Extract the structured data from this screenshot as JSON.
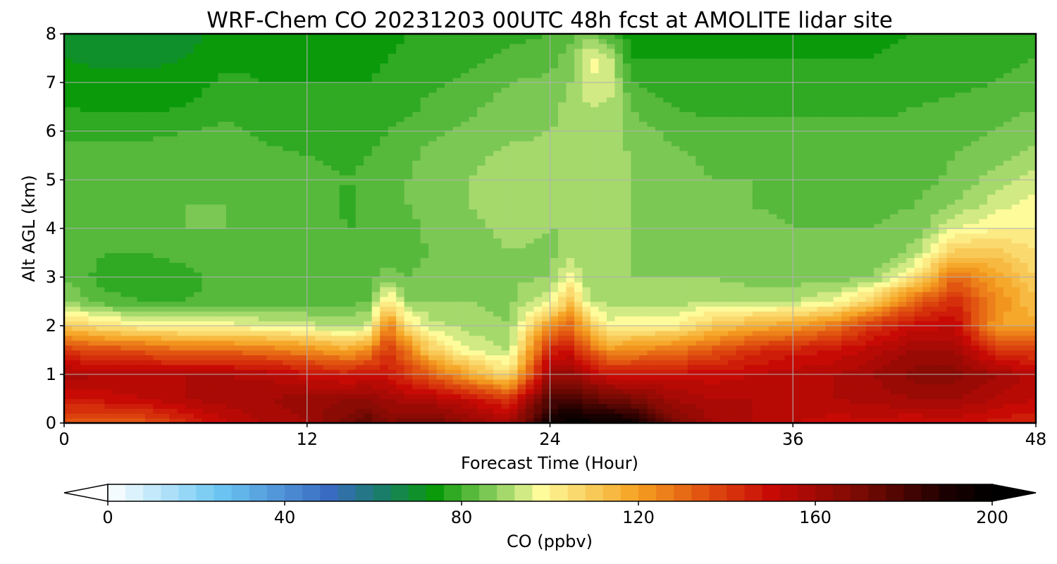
{
  "chart_data": {
    "type": "heatmap",
    "title": "WRF-Chem CO  20231203 00UTC 48h fcst at AMOLITE lidar site",
    "xlabel": "Forecast Time (Hour)",
    "ylabel": "Alt AGL (km)",
    "xlim": [
      0,
      48
    ],
    "ylim": [
      0,
      8
    ],
    "xticks": [
      "0",
      "12",
      "24",
      "36",
      "48"
    ],
    "yticks": [
      "0",
      "1",
      "2",
      "3",
      "4",
      "5",
      "6",
      "7",
      "8"
    ],
    "grid": true,
    "colorbar": {
      "label": "CO  (ppbv)",
      "min": 0,
      "max": 200,
      "ticks": [
        "0",
        "40",
        "80",
        "120",
        "160",
        "200"
      ],
      "extend": "both",
      "stops": [
        {
          "value": 0,
          "color": "#ffffff"
        },
        {
          "value": 25,
          "color": "#6cc7f2"
        },
        {
          "value": 50,
          "color": "#3a6bc2"
        },
        {
          "value": 62,
          "color": "#1a7d6a"
        },
        {
          "value": 74,
          "color": "#0a9a0a"
        },
        {
          "value": 88,
          "color": "#8fd060"
        },
        {
          "value": 98,
          "color": "#fdfb9a"
        },
        {
          "value": 120,
          "color": "#f5a020"
        },
        {
          "value": 135,
          "color": "#e05010"
        },
        {
          "value": 150,
          "color": "#c80a05"
        },
        {
          "value": 170,
          "color": "#7a0a04"
        },
        {
          "value": 190,
          "color": "#1a0000"
        },
        {
          "value": 200,
          "color": "#000000"
        }
      ]
    },
    "columns_time_h": [
      0,
      2,
      4,
      6,
      8,
      10,
      12,
      14,
      15,
      16,
      17,
      18,
      20,
      22,
      24,
      25,
      26,
      27,
      28,
      30,
      32,
      34,
      36,
      38,
      40,
      42,
      44,
      46,
      48
    ],
    "profile_heights_km": [
      0.0,
      0.5,
      1.0,
      1.5,
      2.0,
      2.5,
      3.0,
      3.5,
      4.0,
      4.5,
      5.0,
      5.5,
      6.0,
      6.5,
      7.0,
      7.5,
      8.0
    ],
    "profiles_ppbv": [
      [
        132,
        148,
        158,
        140,
        110,
        88,
        84,
        84,
        83,
        82,
        82,
        82,
        79,
        76,
        74,
        72,
        70
      ],
      [
        130,
        150,
        156,
        136,
        104,
        82,
        78,
        80,
        82,
        82,
        82,
        81,
        79,
        75,
        73,
        71,
        70
      ],
      [
        134,
        152,
        155,
        134,
        100,
        80,
        77,
        80,
        83,
        84,
        83,
        82,
        79,
        75,
        73,
        71,
        70
      ],
      [
        142,
        156,
        156,
        130,
        98,
        80,
        79,
        81,
        84,
        84,
        83,
        82,
        80,
        76,
        74,
        72,
        71
      ],
      [
        152,
        158,
        156,
        130,
        98,
        81,
        81,
        82,
        84,
        84,
        83,
        82,
        81,
        79,
        77,
        75,
        73
      ],
      [
        156,
        160,
        155,
        128,
        96,
        82,
        82,
        82,
        84,
        83,
        82,
        81,
        79,
        77,
        76,
        75,
        74
      ],
      [
        160,
        162,
        150,
        124,
        94,
        82,
        82,
        82,
        83,
        83,
        82,
        80,
        78,
        77,
        76,
        75,
        74
      ],
      [
        170,
        164,
        146,
        118,
        90,
        83,
        82,
        81,
        80,
        79,
        80,
        79,
        77,
        76,
        76,
        75,
        74
      ],
      [
        176,
        164,
        150,
        124,
        94,
        84,
        82,
        80,
        80,
        81,
        81,
        80,
        78,
        77,
        76,
        75,
        74
      ],
      [
        168,
        160,
        148,
        140,
        128,
        104,
        86,
        82,
        82,
        83,
        83,
        82,
        80,
        78,
        77,
        76,
        75
      ],
      [
        170,
        156,
        140,
        128,
        104,
        88,
        84,
        82,
        82,
        84,
        84,
        83,
        81,
        79,
        78,
        77,
        76
      ],
      [
        172,
        156,
        134,
        110,
        94,
        88,
        86,
        84,
        85,
        86,
        86,
        85,
        83,
        81,
        79,
        78,
        77
      ],
      [
        164,
        150,
        118,
        96,
        90,
        88,
        86,
        86,
        87,
        88,
        88,
        87,
        85,
        83,
        81,
        79,
        78
      ],
      [
        158,
        140,
        104,
        92,
        88,
        87,
        87,
        88,
        89,
        90,
        90,
        89,
        87,
        86,
        84,
        81,
        79
      ],
      [
        196,
        178,
        162,
        146,
        122,
        96,
        88,
        87,
        88,
        89,
        90,
        89,
        88,
        87,
        85,
        82,
        80
      ],
      [
        199,
        180,
        162,
        148,
        130,
        112,
        98,
        90,
        88,
        89,
        90,
        90,
        89,
        89,
        88,
        86,
        82
      ],
      [
        198,
        176,
        154,
        132,
        110,
        92,
        88,
        88,
        89,
        90,
        90,
        90,
        90,
        92,
        96,
        98,
        86
      ],
      [
        196,
        172,
        148,
        122,
        98,
        90,
        88,
        88,
        88,
        89,
        89,
        90,
        90,
        91,
        94,
        92,
        80
      ],
      [
        194,
        170,
        148,
        124,
        100,
        90,
        88,
        88,
        88,
        88,
        88,
        88,
        86,
        84,
        80,
        76,
        74
      ],
      [
        172,
        160,
        150,
        128,
        100,
        90,
        88,
        87,
        86,
        86,
        86,
        85,
        83,
        80,
        78,
        76,
        74
      ],
      [
        160,
        156,
        150,
        134,
        110,
        92,
        88,
        86,
        85,
        85,
        84,
        83,
        81,
        79,
        77,
        76,
        74
      ],
      [
        156,
        156,
        152,
        142,
        116,
        92,
        86,
        85,
        85,
        84,
        84,
        83,
        81,
        79,
        77,
        76,
        74
      ],
      [
        152,
        156,
        154,
        146,
        120,
        92,
        86,
        84,
        84,
        83,
        83,
        82,
        81,
        79,
        77,
        76,
        74
      ],
      [
        150,
        156,
        156,
        148,
        128,
        96,
        86,
        84,
        84,
        83,
        82,
        82,
        81,
        79,
        77,
        76,
        75
      ],
      [
        150,
        158,
        160,
        154,
        142,
        110,
        88,
        84,
        84,
        83,
        82,
        82,
        81,
        79,
        77,
        76,
        75
      ],
      [
        148,
        160,
        166,
        160,
        150,
        132,
        104,
        90,
        85,
        84,
        82,
        82,
        81,
        80,
        78,
        77,
        76
      ],
      [
        150,
        160,
        166,
        160,
        152,
        144,
        130,
        110,
        96,
        88,
        85,
        84,
        83,
        81,
        79,
        78,
        77
      ],
      [
        146,
        156,
        160,
        142,
        120,
        124,
        120,
        110,
        100,
        94,
        90,
        86,
        84,
        82,
        80,
        79,
        78
      ],
      [
        144,
        152,
        154,
        138,
        118,
        112,
        108,
        104,
        100,
        98,
        94,
        90,
        86,
        84,
        82,
        80,
        79
      ]
    ]
  }
}
